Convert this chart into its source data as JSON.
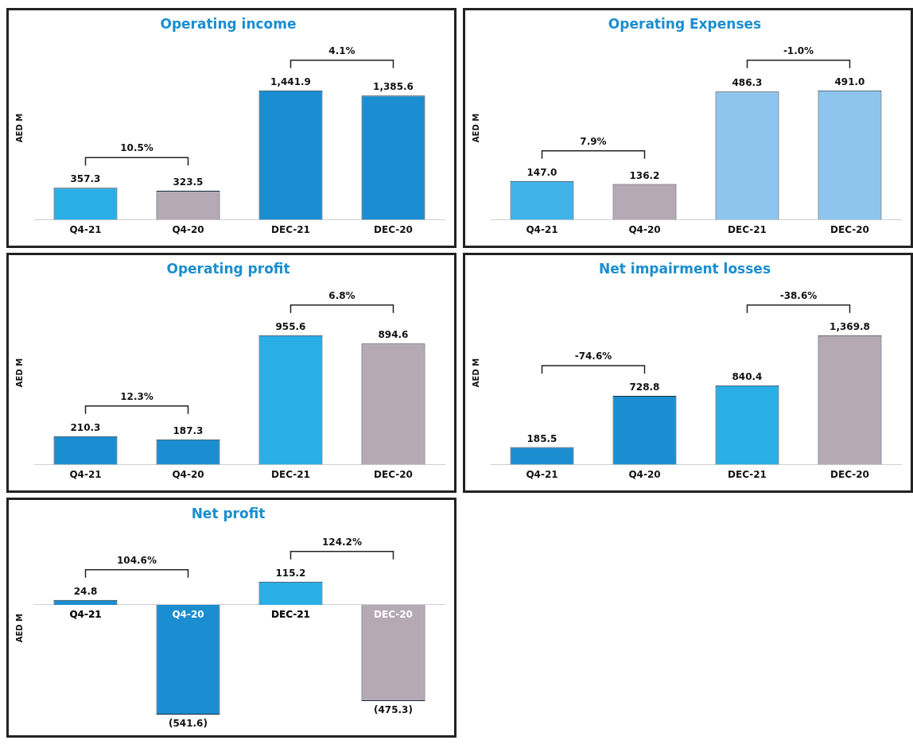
{
  "chart_data": [
    {
      "type": "bar",
      "title": "Operating income",
      "ylabel": "AED M",
      "categories": [
        "Q4-21",
        "Q4-20",
        "DEC-21",
        "DEC-20"
      ],
      "values": [
        357.3,
        323.5,
        1441.9,
        1385.6
      ],
      "colors": [
        "#2aaee6",
        "#b4a9b5",
        "#1a8ed0",
        "#1a8ed0"
      ],
      "value_labels": [
        "357.3",
        "323.5",
        "1,441.9",
        "1,385.6"
      ],
      "annotations": [
        "10.5%",
        "4.1%"
      ],
      "grid": false,
      "legend": false
    },
    {
      "type": "bar",
      "title": "Operating Expenses",
      "ylabel": "AED M",
      "categories": [
        "Q4-21",
        "Q4-20",
        "DEC-21",
        "DEC-20"
      ],
      "values": [
        147.0,
        136.2,
        486.3,
        491.0
      ],
      "colors": [
        "#3fb3e8",
        "#b4a9b5",
        "#8ec5ee",
        "#8ec5ee"
      ],
      "value_labels": [
        "147.0",
        "136.2",
        "486.3",
        "491.0"
      ],
      "annotations": [
        "7.9%",
        "-1.0%"
      ],
      "grid": false,
      "legend": false
    },
    {
      "type": "bar",
      "title": "Operating profit",
      "ylabel": "AED M",
      "categories": [
        "Q4-21",
        "Q4-20",
        "DEC-21",
        "DEC-20"
      ],
      "values": [
        210.3,
        187.3,
        955.6,
        894.6
      ],
      "colors": [
        "#1a8ed0",
        "#1a8ed0",
        "#2aaee6",
        "#b4a9b5"
      ],
      "value_labels": [
        "210.3",
        "187.3",
        "955.6",
        "894.6"
      ],
      "annotations": [
        "12.3%",
        "6.8%"
      ],
      "grid": false,
      "legend": false
    },
    {
      "type": "bar",
      "title": "Net impairment losses",
      "ylabel": "AED M",
      "categories": [
        "Q4-21",
        "Q4-20",
        "DEC-21",
        "DEC-20"
      ],
      "values": [
        185.5,
        728.8,
        840.4,
        1369.8
      ],
      "colors": [
        "#1a8ed0",
        "#1a8ed0",
        "#2aaee6",
        "#b4a9b5"
      ],
      "value_labels": [
        "185.5",
        "728.8",
        "840.4",
        "1,369.8"
      ],
      "annotations": [
        "-74.6%",
        "-38.6%"
      ],
      "grid": false,
      "legend": false
    },
    {
      "type": "bar",
      "title": "Net profit",
      "ylabel": "AED M",
      "categories": [
        "Q4-21",
        "Q4-20",
        "DEC-21",
        "DEC-20"
      ],
      "values": [
        24.8,
        -541.6,
        115.2,
        -475.3
      ],
      "colors": [
        "#1a8ed0",
        "#1a8ed0",
        "#2aaee6",
        "#b4a9b5"
      ],
      "value_labels": [
        "24.8",
        "(541.6)",
        "115.2",
        "(475.3)"
      ],
      "annotations": [
        "104.6%",
        "124.2%"
      ],
      "grid": false,
      "legend": false
    }
  ]
}
